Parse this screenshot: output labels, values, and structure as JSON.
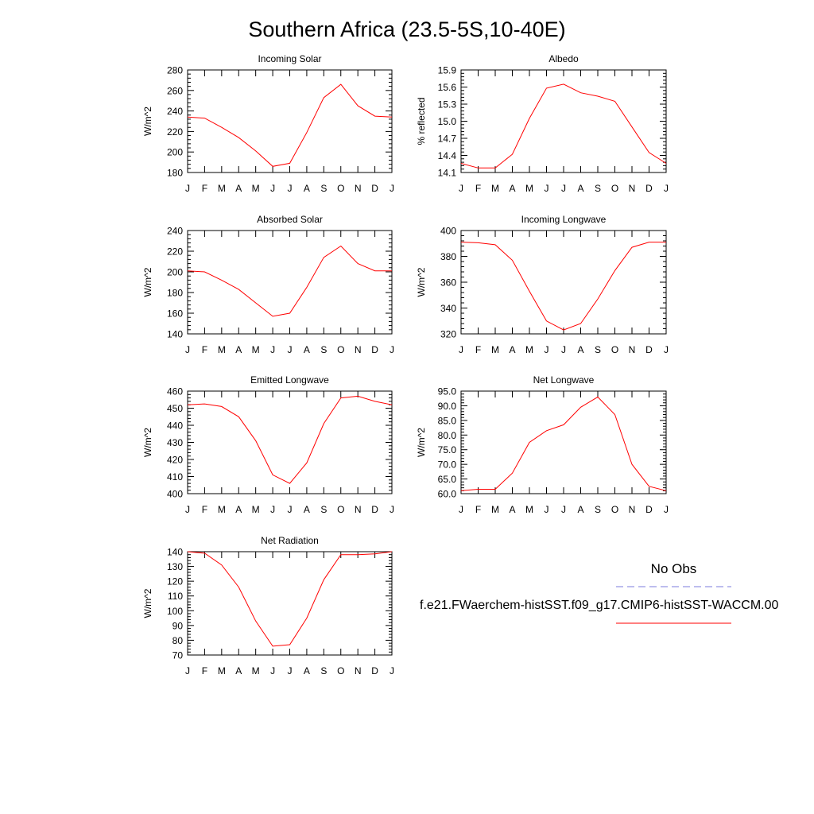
{
  "title": "Southern Africa (23.5-5S,10-40E)",
  "legend": {
    "obs_label": "No Obs",
    "obs_color": "#7b7bdd",
    "model_label": "f.e21.FWaerchem-histSST.f09_g17.CMIP6-histSST-WACCM.00",
    "model_color": "#ff0000"
  },
  "chart_data": [
    {
      "type": "line",
      "title": "Incoming Solar",
      "ylabel": "W/m^2",
      "categories": [
        "J",
        "F",
        "M",
        "A",
        "M",
        "J",
        "J",
        "A",
        "S",
        "O",
        "N",
        "D",
        "J"
      ],
      "ylim": [
        180,
        280
      ],
      "yticks": [
        180,
        200,
        220,
        240,
        260,
        280
      ],
      "ytick_labels": [
        "180",
        "200",
        "220",
        "240",
        "260",
        "280"
      ],
      "series": [
        {
          "values": [
            234,
            233,
            224,
            214,
            201,
            186,
            189,
            219,
            253,
            266,
            245,
            235,
            234
          ]
        }
      ]
    },
    {
      "type": "line",
      "title": "Albedo",
      "ylabel": "% reflected",
      "categories": [
        "J",
        "F",
        "M",
        "A",
        "M",
        "J",
        "J",
        "A",
        "S",
        "O",
        "N",
        "D",
        "J"
      ],
      "ylim": [
        14.1,
        15.9
      ],
      "yticks": [
        14.1,
        14.4,
        14.7,
        15.0,
        15.3,
        15.6,
        15.9
      ],
      "ytick_labels": [
        "14.1",
        "14.4",
        "14.7",
        "15.0",
        "15.3",
        "15.6",
        "15.9"
      ],
      "series": [
        {
          "values": [
            14.26,
            14.18,
            14.18,
            14.42,
            15.05,
            15.58,
            15.65,
            15.5,
            15.44,
            15.35,
            14.9,
            14.45,
            14.26
          ]
        }
      ]
    },
    {
      "type": "line",
      "title": "Absorbed Solar",
      "ylabel": "W/m^2",
      "categories": [
        "J",
        "F",
        "M",
        "A",
        "M",
        "J",
        "J",
        "A",
        "S",
        "O",
        "N",
        "D",
        "J"
      ],
      "ylim": [
        140,
        240
      ],
      "yticks": [
        140,
        160,
        180,
        200,
        220,
        240
      ],
      "ytick_labels": [
        "140",
        "160",
        "180",
        "200",
        "220",
        "240"
      ],
      "series": [
        {
          "values": [
            201,
            200,
            192,
            183,
            170,
            157,
            160,
            185,
            214,
            225,
            208,
            201,
            201
          ]
        }
      ]
    },
    {
      "type": "line",
      "title": "Incoming Longwave",
      "ylabel": "W/m^2",
      "categories": [
        "J",
        "F",
        "M",
        "A",
        "M",
        "J",
        "J",
        "A",
        "S",
        "O",
        "N",
        "D",
        "J"
      ],
      "ylim": [
        320,
        400
      ],
      "yticks": [
        320,
        340,
        360,
        380,
        400
      ],
      "ytick_labels": [
        "320",
        "340",
        "360",
        "380",
        "400"
      ],
      "series": [
        {
          "values": [
            391,
            390.5,
            389,
            377,
            353,
            330,
            323,
            328,
            347,
            369,
            387,
            391,
            391
          ]
        }
      ]
    },
    {
      "type": "line",
      "title": "Emitted Longwave",
      "ylabel": "W/m^2",
      "categories": [
        "J",
        "F",
        "M",
        "A",
        "M",
        "J",
        "J",
        "A",
        "S",
        "O",
        "N",
        "D",
        "J"
      ],
      "ylim": [
        400,
        460
      ],
      "yticks": [
        400,
        410,
        420,
        430,
        440,
        450,
        460
      ],
      "ytick_labels": [
        "400",
        "410",
        "420",
        "430",
        "440",
        "450",
        "460"
      ],
      "series": [
        {
          "values": [
            452,
            452.5,
            451,
            445,
            431,
            411,
            406,
            418,
            441,
            456,
            457,
            454,
            452
          ]
        }
      ]
    },
    {
      "type": "line",
      "title": "Net Longwave",
      "ylabel": "W/m^2",
      "categories": [
        "J",
        "F",
        "M",
        "A",
        "M",
        "J",
        "J",
        "A",
        "S",
        "O",
        "N",
        "D",
        "J"
      ],
      "ylim": [
        60,
        95
      ],
      "yticks": [
        60,
        65,
        70,
        75,
        80,
        85,
        90,
        95
      ],
      "ytick_labels": [
        "60.0",
        "65.0",
        "70.0",
        "75.0",
        "80.0",
        "85.0",
        "90.0",
        "95.0"
      ],
      "series": [
        {
          "values": [
            61,
            61.5,
            61.5,
            67,
            77.5,
            81.5,
            83.5,
            89.5,
            93,
            87,
            70,
            62.5,
            61
          ]
        }
      ]
    },
    {
      "type": "line",
      "title": "Net Radiation",
      "ylabel": "W/m^2",
      "categories": [
        "J",
        "F",
        "M",
        "A",
        "M",
        "J",
        "J",
        "A",
        "S",
        "O",
        "N",
        "D",
        "J"
      ],
      "ylim": [
        70,
        140
      ],
      "yticks": [
        70,
        80,
        90,
        100,
        110,
        120,
        130,
        140
      ],
      "ytick_labels": [
        "70",
        "80",
        "90",
        "100",
        "110",
        "120",
        "130",
        "140"
      ],
      "series": [
        {
          "values": [
            140,
            139,
            131,
            116,
            93,
            76,
            77,
            95,
            121,
            138,
            138,
            138.5,
            140
          ]
        }
      ]
    }
  ]
}
